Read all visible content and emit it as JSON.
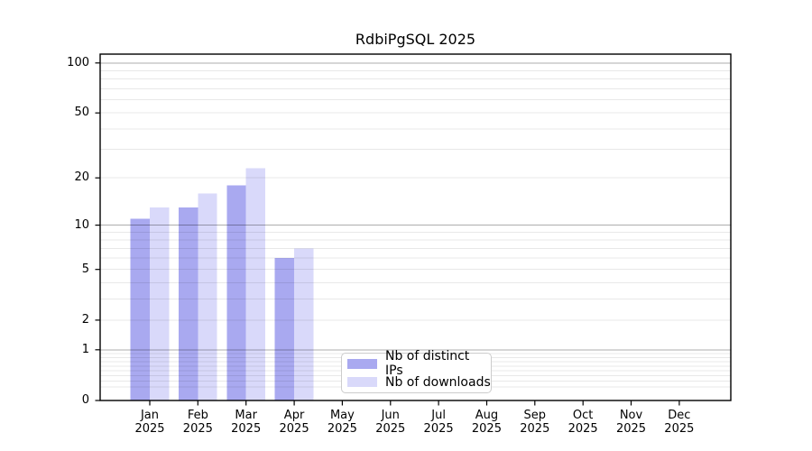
{
  "chart_data": {
    "type": "bar",
    "title": "RdbiPgSQL 2025",
    "categories": [
      "Jan",
      "Feb",
      "Mar",
      "Apr",
      "May",
      "Jun",
      "Jul",
      "Aug",
      "Sep",
      "Oct",
      "Nov",
      "Dec"
    ],
    "x_year": "2025",
    "series": [
      {
        "name": "Nb of distinct IPs",
        "color": "#a9a9f0",
        "values": [
          11,
          13,
          18,
          6,
          0,
          0,
          0,
          0,
          0,
          0,
          0,
          0
        ]
      },
      {
        "name": "Nb of downloads",
        "color": "#d9d9fa",
        "values": [
          13,
          16,
          23,
          7,
          0,
          0,
          0,
          0,
          0,
          0,
          0,
          0
        ]
      }
    ],
    "y_axis": {
      "scale": "log1p",
      "ylim": [
        0,
        113
      ],
      "tick_values": [
        100,
        50,
        20,
        10,
        5,
        2,
        1,
        0
      ],
      "tick_labels": [
        "100",
        "50",
        "20",
        "10",
        "5",
        "2",
        "1",
        "0"
      ],
      "major_gridlines": [
        1,
        10,
        100
      ],
      "minor_gridlines": [
        0.2,
        0.3,
        0.4,
        0.5,
        0.6,
        0.7,
        0.8,
        0.9,
        2,
        3,
        4,
        5,
        6,
        7,
        8,
        9,
        20,
        30,
        40,
        50,
        60,
        70,
        80,
        90
      ]
    },
    "colors": {
      "grid_major": "rgba(0,0,0,0.32)",
      "grid_minor": "rgba(0,0,0,0.09)",
      "spine": "#000000"
    },
    "legend": {
      "position": "lower center inside"
    },
    "grid": true
  }
}
